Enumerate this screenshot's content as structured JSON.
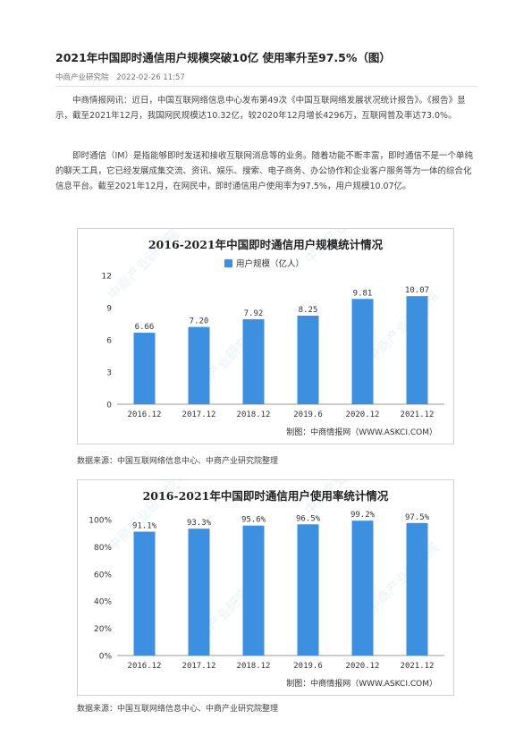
{
  "article": {
    "title": "2021年中国即时通信用户规模突破10亿 使用率升至97.5%（图）",
    "source": "中商产业研究院",
    "date": "2022-02-26 11:57",
    "paragraphs": [
      "中商情报网讯：近日，中国互联网络信息中心发布第49次《中国互联网络发展状况统计报告》。《报告》显示，截至2021年12月，我国网民规模达10.32亿，较2020年12月增长4296万，互联网普及率达73.0%。",
      "即时通信（IM）是指能够即时发送和接收互联网消息等的业务。随着功能不断丰富，即时通信不是一个单纯的聊天工具，它已经发展成集交流、资讯、娱乐、搜索、电子商务、办公协作和企业客户服务等为一体的综合化信息平台。截至2021年12月，在网民中，即时通信用户使用率为97.5%，用户规模10.07亿。"
    ],
    "caption1": "数据来源：中国互联网络信息中心、中商产业研究院整理",
    "caption2": "数据来源：中国互联网络信息中心、中商产业研究院整理"
  },
  "watermark": "中商产业研究院",
  "chart_data": [
    {
      "type": "bar",
      "title": "2016-2021年中国即时通信用户规模统计情况",
      "legend": "用户规模（亿人）",
      "legend_position": "top-left",
      "categories": [
        "2016.12",
        "2017.12",
        "2018.12",
        "2019.6",
        "2020.12",
        "2021.12"
      ],
      "values": [
        6.66,
        7.2,
        7.92,
        8.25,
        9.81,
        10.07
      ],
      "value_labels": [
        "6.66",
        "7.20",
        "7.92",
        "8.25",
        "9.81",
        "10.07"
      ],
      "yticks": [
        "0",
        "3",
        "6",
        "9",
        "12"
      ],
      "ylim": [
        0,
        12
      ],
      "grid": false,
      "bar_color": "#3d8fe0",
      "footer": "制图：中商情报网（WWW.ASKCI.COM）"
    },
    {
      "type": "bar",
      "title": "2016-2021年中国即时通信用户使用率统计情况",
      "categories": [
        "2016.12",
        "2017.12",
        "2018.12",
        "2019.6",
        "2020.12",
        "2021.12"
      ],
      "values": [
        91.1,
        93.3,
        95.6,
        96.5,
        99.2,
        97.5
      ],
      "value_labels": [
        "91.1%",
        "93.3%",
        "95.6%",
        "96.5%",
        "99.2%",
        "97.5%"
      ],
      "yticks": [
        "0%",
        "20%",
        "40%",
        "60%",
        "80%",
        "100%"
      ],
      "ylim": [
        0,
        100
      ],
      "grid": false,
      "bar_color": "#3d8fe0",
      "footer": "制图：中商情报网（WWW.ASKCI.COM）"
    }
  ]
}
